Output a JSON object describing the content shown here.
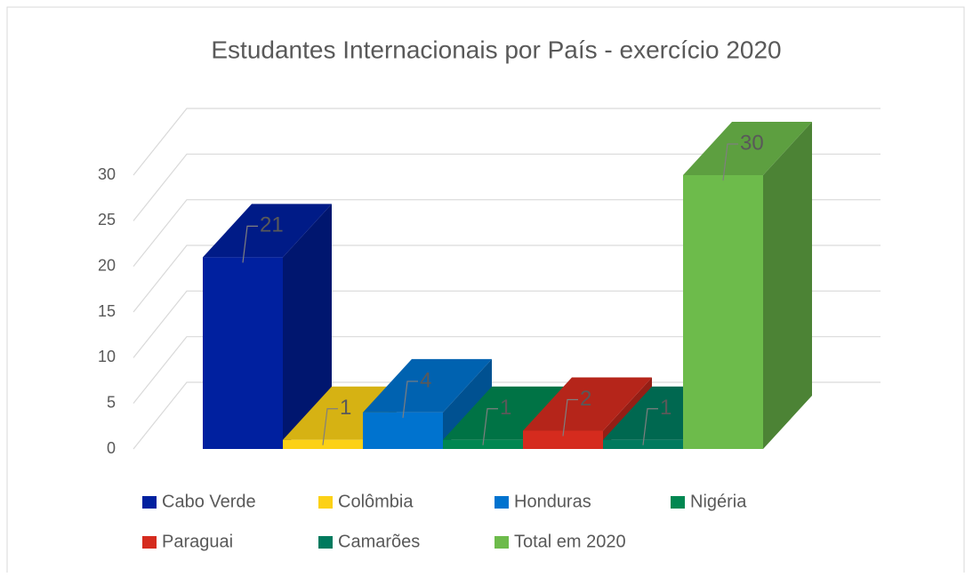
{
  "chart_data": {
    "type": "bar",
    "title": "Estudantes Internacionais por País - exercício 2020",
    "series": [
      {
        "name": "Cabo Verde",
        "color": "#00209f",
        "values": [
          21
        ]
      },
      {
        "name": "Colômbia",
        "color": "#fcd116",
        "values": [
          1
        ]
      },
      {
        "name": "Honduras",
        "color": "#0073cf",
        "values": [
          4
        ]
      },
      {
        "name": "Nigéria",
        "color": "#008751",
        "values": [
          1
        ]
      },
      {
        "name": "Paraguai",
        "color": "#d52b1e",
        "values": [
          2
        ]
      },
      {
        "name": "Camarões",
        "color": "#007a5e",
        "values": [
          1
        ]
      },
      {
        "name": "Total em 2020",
        "color": "#6dbb4b",
        "values": [
          30
        ]
      }
    ],
    "ylim": [
      0,
      30
    ],
    "yticks": [
      0,
      5,
      10,
      15,
      20,
      25,
      30
    ],
    "grid": true
  }
}
